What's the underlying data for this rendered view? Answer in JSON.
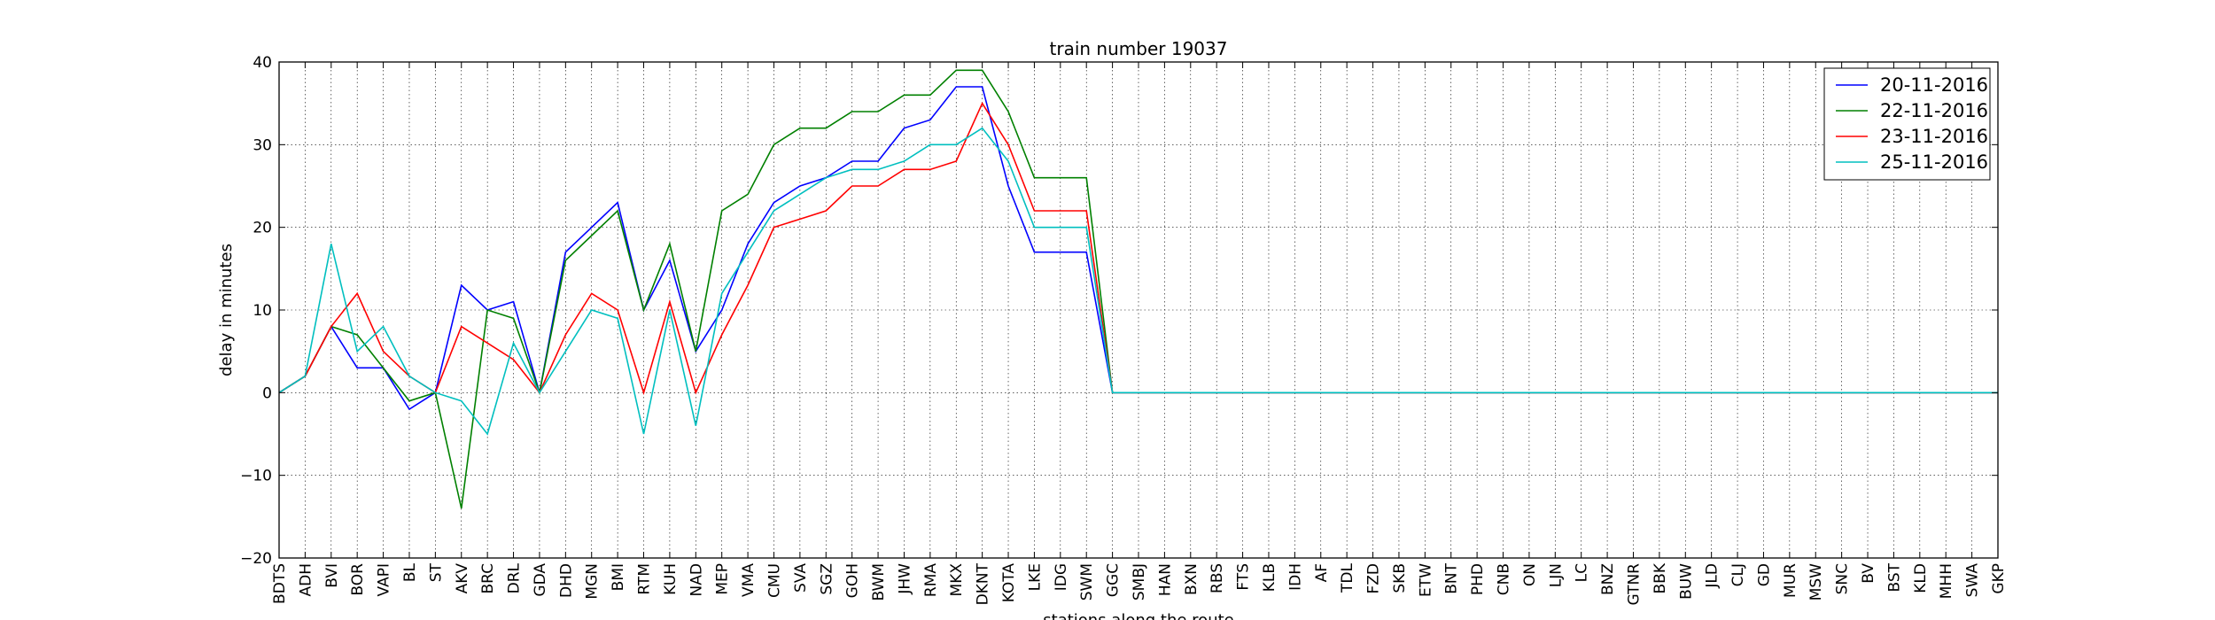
{
  "chart_data": {
    "type": "line",
    "title": "train number 19037",
    "xlabel": "stations along the route",
    "ylabel": "delay in minutes",
    "ylim": [
      -20,
      40
    ],
    "yticks": [
      -20,
      -10,
      0,
      10,
      20,
      30,
      40
    ],
    "yticklabels": [
      "−20",
      "−10",
      "0",
      "10",
      "20",
      "30",
      "40"
    ],
    "grid": true,
    "legend_position": "top-right",
    "categories": [
      "BDTS",
      "ADH",
      "BVI",
      "BOR",
      "VAPI",
      "BL",
      "ST",
      "AKV",
      "BRC",
      "DRL",
      "GDA",
      "DHD",
      "MGN",
      "BMI",
      "RTM",
      "KUH",
      "NAD",
      "MEP",
      "VMA",
      "CMU",
      "SVA",
      "SGZ",
      "GOH",
      "BWM",
      "JHW",
      "RMA",
      "MKX",
      "DKNT",
      "KOTA",
      "LKE",
      "IDG",
      "SWM",
      "GGC",
      "SMBJ",
      "HAN",
      "BXN",
      "RBS",
      "FTS",
      "KLB",
      "IDH",
      "AF",
      "TDL",
      "FZD",
      "SKB",
      "ETW",
      "BNT",
      "PHD",
      "CNB",
      "ON",
      "LJN",
      "LC",
      "BNZ",
      "GTNR",
      "BBK",
      "BUW",
      "JLD",
      "CLJ",
      "GD",
      "MUR",
      "MSW",
      "SNC",
      "BV",
      "BST",
      "KLD",
      "MHH",
      "SWA",
      "GKP"
    ],
    "series": [
      {
        "name": "20-11-2016",
        "color": "#0000ff",
        "values": [
          0,
          2,
          8,
          3,
          3,
          -2,
          0,
          13,
          10,
          11,
          0,
          17,
          20,
          23,
          10,
          16,
          5,
          10,
          18,
          23,
          25,
          26,
          28,
          28,
          32,
          33,
          37,
          37,
          25,
          17,
          17,
          17,
          0,
          0,
          0,
          0,
          0,
          0,
          0,
          0,
          0,
          0,
          0,
          0,
          0,
          0,
          0,
          0,
          0,
          0,
          0,
          0,
          0,
          0,
          0,
          0,
          0,
          0,
          0,
          0,
          0,
          0,
          0,
          0,
          0,
          0,
          0
        ]
      },
      {
        "name": "22-11-2016",
        "color": "#008000",
        "values": [
          0,
          2,
          8,
          7,
          3,
          -1,
          0,
          -14,
          10,
          9,
          0,
          16,
          19,
          22,
          10,
          18,
          5,
          22,
          24,
          30,
          32,
          32,
          34,
          34,
          36,
          36,
          39,
          39,
          34,
          26,
          26,
          26,
          0,
          0,
          0,
          0,
          0,
          0,
          0,
          0,
          0,
          0,
          0,
          0,
          0,
          0,
          0,
          0,
          0,
          0,
          0,
          0,
          0,
          0,
          0,
          0,
          0,
          0,
          0,
          0,
          0,
          0,
          0,
          0,
          0,
          0,
          0
        ]
      },
      {
        "name": "23-11-2016",
        "color": "#ff0000",
        "values": [
          0,
          2,
          8,
          12,
          5,
          2,
          0,
          8,
          6,
          4,
          0,
          7,
          12,
          10,
          0,
          11,
          0,
          7,
          13,
          20,
          21,
          22,
          25,
          25,
          27,
          27,
          28,
          35,
          30,
          22,
          22,
          22,
          0,
          0,
          0,
          0,
          0,
          0,
          0,
          0,
          0,
          0,
          0,
          0,
          0,
          0,
          0,
          0,
          0,
          0,
          0,
          0,
          0,
          0,
          0,
          0,
          0,
          0,
          0,
          0,
          0,
          0,
          0,
          0,
          0,
          0,
          0
        ]
      },
      {
        "name": "25-11-2016",
        "color": "#00bfbf",
        "values": [
          0,
          2,
          18,
          5,
          8,
          2,
          0,
          -1,
          -5,
          6,
          0,
          5,
          10,
          9,
          -5,
          10,
          -4,
          12,
          17,
          22,
          24,
          26,
          27,
          27,
          28,
          30,
          30,
          32,
          28,
          20,
          20,
          20,
          0,
          0,
          0,
          0,
          0,
          0,
          0,
          0,
          0,
          0,
          0,
          0,
          0,
          0,
          0,
          0,
          0,
          0,
          0,
          0,
          0,
          0,
          0,
          0,
          0,
          0,
          0,
          0,
          0,
          0,
          0,
          0,
          0,
          0,
          0
        ]
      }
    ]
  }
}
